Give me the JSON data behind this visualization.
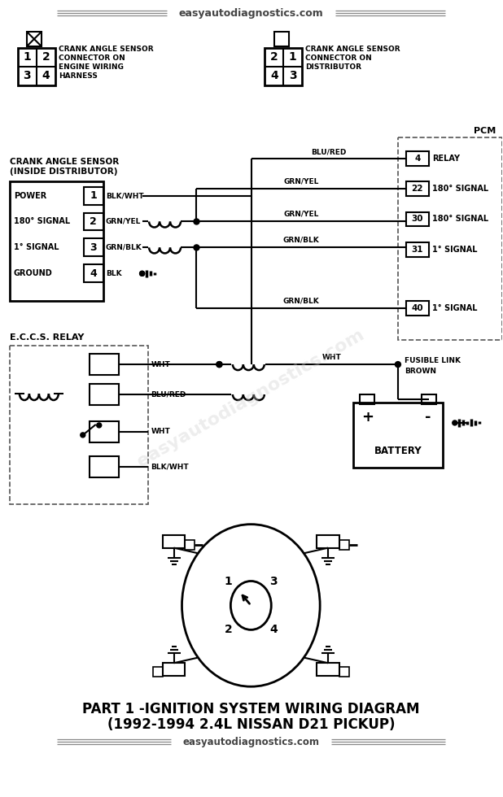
{
  "title_line1": "PART 1 -IGNITION SYSTEM WIRING DIAGRAM",
  "title_line2": "(1992-1994 2.4L NISSAN D21 PICKUP)",
  "website": "easyautodiagnostics.com",
  "bg_color": "#ffffff",
  "line_color": "#000000",
  "gray_color": "#777777",
  "watermark_text": "easyautodiagnostics.com"
}
